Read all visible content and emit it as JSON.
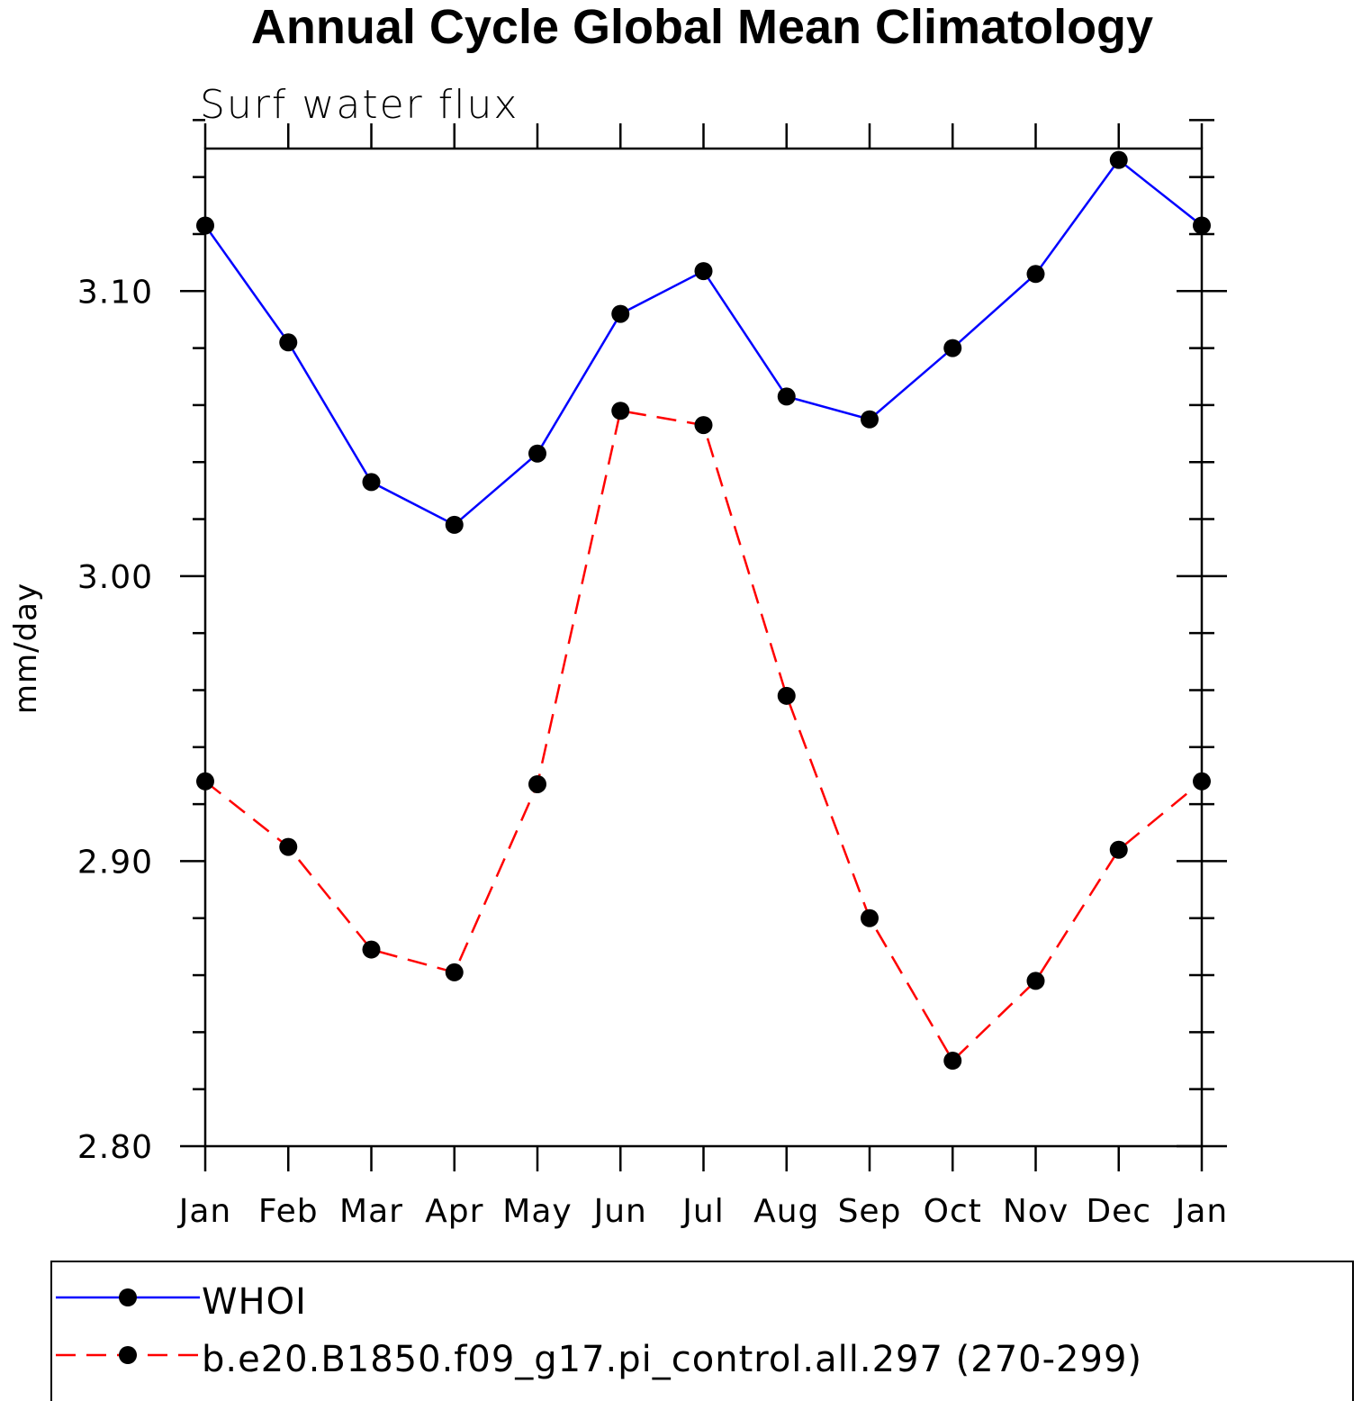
{
  "chart_data": {
    "type": "line",
    "title": "Annual Cycle Global Mean Climatology",
    "subtitle": "Surf water flux",
    "xlabel": "",
    "ylabel": "mm/day",
    "categories": [
      "Jan",
      "Feb",
      "Mar",
      "Apr",
      "May",
      "Jun",
      "Jul",
      "Aug",
      "Sep",
      "Oct",
      "Nov",
      "Dec",
      "Jan"
    ],
    "ylim": [
      2.8,
      3.15
    ],
    "yticks": [
      2.8,
      2.9,
      3.0,
      3.1
    ],
    "ytick_labels": [
      "2.80",
      "2.90",
      "3.00",
      "3.10"
    ],
    "y_minor_step": 0.02,
    "series": [
      {
        "name": "WHOI",
        "color": "#0000ff",
        "style": "solid",
        "values": [
          3.123,
          3.082,
          3.033,
          3.018,
          3.043,
          3.092,
          3.107,
          3.063,
          3.055,
          3.08,
          3.106,
          3.146,
          3.123
        ]
      },
      {
        "name": "b.e20.B1850.f09_g17.pi_control.all.297 (270-299)",
        "color": "#ff0000",
        "style": "dashed",
        "values": [
          2.928,
          2.905,
          2.869,
          2.861,
          2.927,
          3.058,
          3.053,
          2.958,
          2.88,
          2.83,
          2.858,
          2.904,
          2.928
        ]
      }
    ],
    "marker_color": "#000000",
    "legend_position": "bottom"
  }
}
